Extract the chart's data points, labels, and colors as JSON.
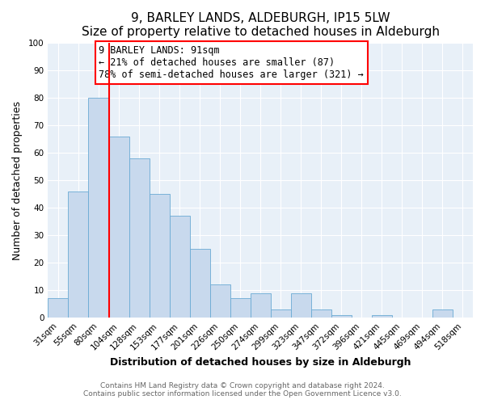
{
  "title": "9, BARLEY LANDS, ALDEBURGH, IP15 5LW",
  "subtitle": "Size of property relative to detached houses in Aldeburgh",
  "xlabel": "Distribution of detached houses by size in Aldeburgh",
  "ylabel": "Number of detached properties",
  "bar_labels": [
    "31sqm",
    "55sqm",
    "80sqm",
    "104sqm",
    "128sqm",
    "153sqm",
    "177sqm",
    "201sqm",
    "226sqm",
    "250sqm",
    "274sqm",
    "299sqm",
    "323sqm",
    "347sqm",
    "372sqm",
    "396sqm",
    "421sqm",
    "445sqm",
    "469sqm",
    "494sqm",
    "518sqm"
  ],
  "bar_values": [
    7,
    46,
    80,
    66,
    58,
    45,
    37,
    25,
    12,
    7,
    9,
    3,
    9,
    3,
    1,
    0,
    1,
    0,
    0,
    3,
    0
  ],
  "bar_color": "#c8d9ed",
  "bar_edge_color": "#6aaad4",
  "ylim": [
    0,
    100
  ],
  "yticks": [
    0,
    10,
    20,
    30,
    40,
    50,
    60,
    70,
    80,
    90,
    100
  ],
  "red_line_bar_index": 2,
  "annotation_title": "9 BARLEY LANDS: 91sqm",
  "annotation_line1": "← 21% of detached houses are smaller (87)",
  "annotation_line2": "78% of semi-detached houses are larger (321) →",
  "footer1": "Contains HM Land Registry data © Crown copyright and database right 2024.",
  "footer2": "Contains public sector information licensed under the Open Government Licence v3.0.",
  "plot_bg_color": "#e8f0f8",
  "fig_bg_color": "#ffffff",
  "grid_color": "#ffffff",
  "title_fontsize": 11,
  "axis_label_fontsize": 9,
  "tick_fontsize": 7.5,
  "annotation_fontsize": 8.5,
  "footer_fontsize": 6.5
}
